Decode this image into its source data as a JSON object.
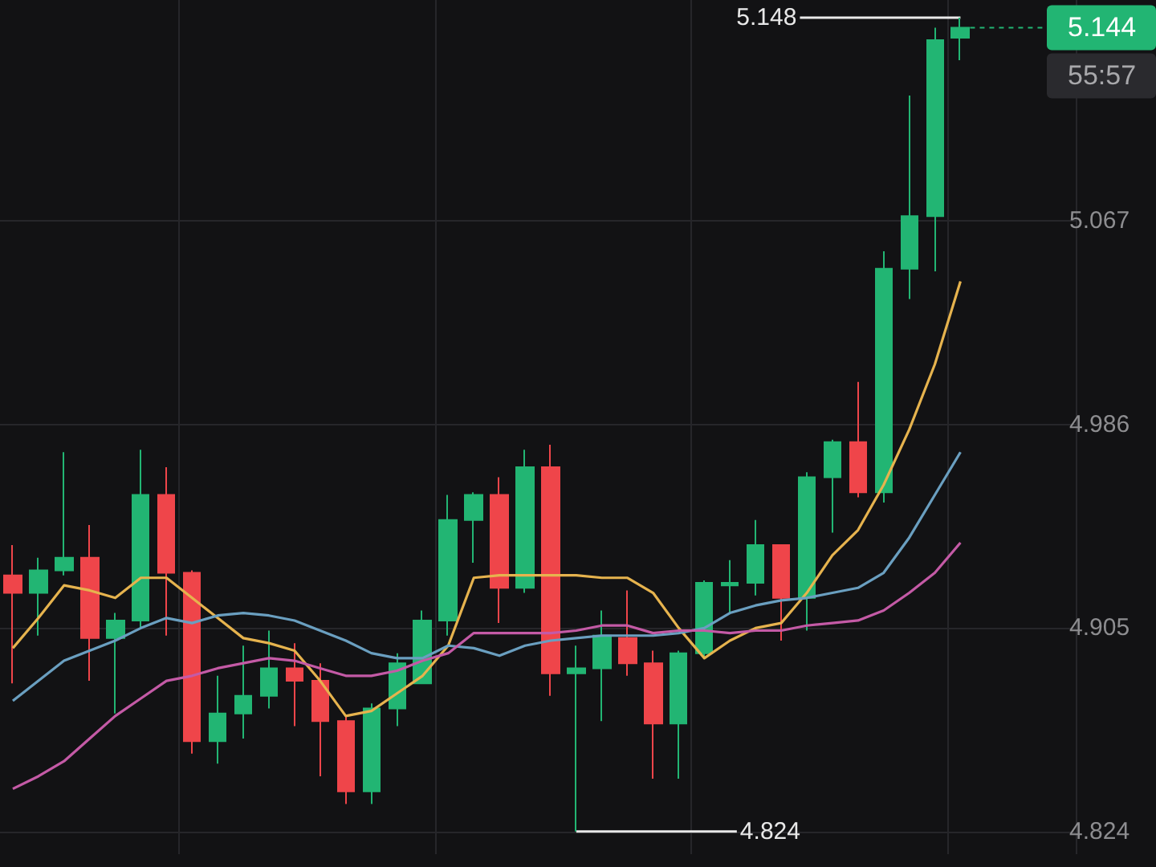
{
  "chart_data": {
    "type": "candlestick",
    "categories": [
      null,
      null,
      null,
      null,
      null,
      null,
      null,
      null,
      null,
      null,
      null,
      null,
      null,
      null,
      null,
      null,
      null,
      null,
      null,
      null,
      null,
      null,
      null,
      null,
      null,
      null,
      null,
      null,
      null,
      null,
      null,
      null,
      null,
      null,
      null,
      null,
      null,
      null
    ],
    "ohlc": [
      [
        4.926,
        4.938,
        4.883,
        4.919
      ],
      [
        4.919,
        4.933,
        4.902,
        4.928
      ],
      [
        4.928,
        4.975,
        4.926,
        4.933
      ],
      [
        4.933,
        4.946,
        4.884,
        4.901
      ],
      [
        4.901,
        4.911,
        4.871,
        4.908
      ],
      [
        4.908,
        4.976,
        4.905,
        4.958
      ],
      [
        4.958,
        4.969,
        4.902,
        4.927
      ],
      [
        4.927,
        4.928,
        4.855,
        4.86
      ],
      [
        4.86,
        4.886,
        4.851,
        4.871
      ],
      [
        4.871,
        4.898,
        4.861,
        4.878
      ],
      [
        4.878,
        4.904,
        4.873,
        4.889
      ],
      [
        4.889,
        4.899,
        4.866,
        4.884
      ],
      [
        4.884,
        4.891,
        4.846,
        4.868
      ],
      [
        4.868,
        4.87,
        4.835,
        4.84
      ],
      [
        4.84,
        4.875,
        4.835,
        4.873
      ],
      [
        4.873,
        4.895,
        4.866,
        4.891
      ],
      [
        4.883,
        4.912,
        4.883,
        4.908
      ],
      [
        4.908,
        4.958,
        4.902,
        4.948
      ],
      [
        4.948,
        4.959,
        4.931,
        4.958
      ],
      [
        4.958,
        4.965,
        4.907,
        4.921
      ],
      [
        4.921,
        4.976,
        4.919,
        4.969
      ],
      [
        4.969,
        4.978,
        4.878,
        4.887
      ],
      [
        4.887,
        4.898,
        4.824,
        4.889
      ],
      [
        4.889,
        4.912,
        4.868,
        4.902
      ],
      [
        4.901,
        4.92,
        4.886,
        4.891
      ],
      [
        4.891,
        4.896,
        4.845,
        4.867
      ],
      [
        4.867,
        4.896,
        4.845,
        4.895
      ],
      [
        4.895,
        4.924,
        4.893,
        4.923
      ],
      [
        4.922,
        4.932,
        4.911,
        4.923
      ],
      [
        4.923,
        4.948,
        4.918,
        4.938
      ],
      [
        4.938,
        4.938,
        4.9,
        4.917
      ],
      [
        4.917,
        4.967,
        4.904,
        4.965
      ],
      [
        4.965,
        4.98,
        4.943,
        4.979
      ],
      [
        4.979,
        5.003,
        4.957,
        4.959
      ],
      [
        4.959,
        5.055,
        4.955,
        5.048
      ],
      [
        5.048,
        5.117,
        5.036,
        5.069
      ],
      [
        5.069,
        5.144,
        5.047,
        5.139
      ],
      [
        5.14,
        5.148,
        5.131,
        5.144
      ]
    ],
    "colors": [
      "#ef454a",
      "#22b573",
      "#22b573",
      "#ef454a",
      "#22b573",
      "#22b573",
      "#ef454a",
      "#ef454a",
      "#22b573",
      "#22b573",
      "#22b573",
      "#ef454a",
      "#ef454a",
      "#ef454a",
      "#22b573",
      "#22b573",
      "#22b573",
      "#22b573",
      "#22b573",
      "#ef454a",
      "#22b573",
      "#ef454a",
      "#22b573",
      "#22b573",
      "#ef454a",
      "#ef454a",
      "#22b573",
      "#22b573",
      "#22b573",
      "#22b573",
      "#ef454a",
      "#22b573",
      "#22b573",
      "#ef454a",
      "#22b573",
      "#22b573",
      "#22b573",
      "#22b573"
    ],
    "series": [
      {
        "type": "line",
        "color": "#e6b34e",
        "values": [
          4.897,
          4.909,
          4.922,
          4.92,
          4.917,
          4.925,
          4.925,
          4.917,
          4.909,
          4.901,
          4.899,
          4.896,
          4.884,
          4.87,
          4.872,
          4.879,
          4.886,
          4.898,
          4.925,
          4.926,
          4.926,
          4.926,
          4.926,
          4.925,
          4.925,
          4.919,
          4.905,
          4.893,
          4.9,
          4.905,
          4.907,
          4.919,
          4.934,
          4.944,
          4.962,
          4.984,
          5.01,
          5.043
        ]
      },
      {
        "type": "line",
        "color": "#6a9fc0",
        "values": [
          4.876,
          4.884,
          4.892,
          4.896,
          4.9,
          4.905,
          4.909,
          4.907,
          4.91,
          4.911,
          4.91,
          4.908,
          4.904,
          4.9,
          4.895,
          4.893,
          4.893,
          4.898,
          4.897,
          4.894,
          4.898,
          4.9,
          4.901,
          4.902,
          4.902,
          4.902,
          4.903,
          4.905,
          4.911,
          4.914,
          4.916,
          4.917,
          4.919,
          4.921,
          4.927,
          4.941,
          4.958,
          4.975
        ]
      },
      {
        "type": "line",
        "color": "#c45aa6",
        "values": [
          4.841,
          4.846,
          4.852,
          4.861,
          4.87,
          4.877,
          4.884,
          4.886,
          4.889,
          4.891,
          4.893,
          4.892,
          4.889,
          4.886,
          4.886,
          4.888,
          4.892,
          4.895,
          4.903,
          4.903,
          4.903,
          4.903,
          4.904,
          4.906,
          4.906,
          4.903,
          4.904,
          4.904,
          4.903,
          4.904,
          4.904,
          4.906,
          4.907,
          4.908,
          4.912,
          4.919,
          4.927,
          4.939
        ]
      }
    ],
    "ylim": [
      4.815,
      5.155
    ],
    "yticks": [
      4.824,
      4.905,
      4.986,
      5.067
    ],
    "grid": true,
    "marker": "none",
    "line_style": "solid",
    "ref_lines": [
      {
        "axis": "y",
        "value": 5.144,
        "label": "5.144",
        "color": "#22b573",
        "line_style": "dashed"
      }
    ],
    "annotations": [
      "5.148",
      "4.824",
      "55:57"
    ]
  }
}
